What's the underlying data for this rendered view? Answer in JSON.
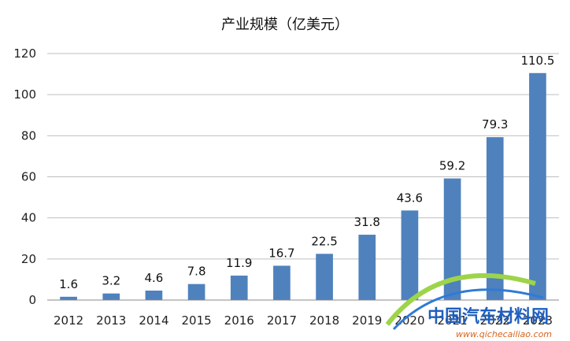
{
  "chart_data": {
    "type": "bar",
    "title": "产业规模（亿美元）",
    "categories": [
      "2012",
      "2013",
      "2014",
      "2015",
      "2016",
      "2017",
      "2018",
      "2019",
      "2020",
      "2021",
      "2022",
      "2023"
    ],
    "values": [
      1.6,
      3.2,
      4.6,
      7.8,
      11.9,
      16.7,
      22.5,
      31.8,
      43.6,
      59.2,
      79.3,
      110.5
    ],
    "value_labels": [
      "1.6",
      "3.2",
      "4.6",
      "7.8",
      "11.9",
      "16.7",
      "22.5",
      "31.8",
      "43.6",
      "59.2",
      "79.3",
      "110.5"
    ],
    "ylim": [
      0,
      120
    ],
    "yticks": [
      "0",
      "20",
      "40",
      "60",
      "80",
      "100",
      "120"
    ],
    "grid": true,
    "bar_color": "#4f81bd",
    "grid_color": "#bfbfbf"
  },
  "watermark": {
    "title": "中国汽车材料网",
    "url": "www.qichecailiao.com"
  }
}
